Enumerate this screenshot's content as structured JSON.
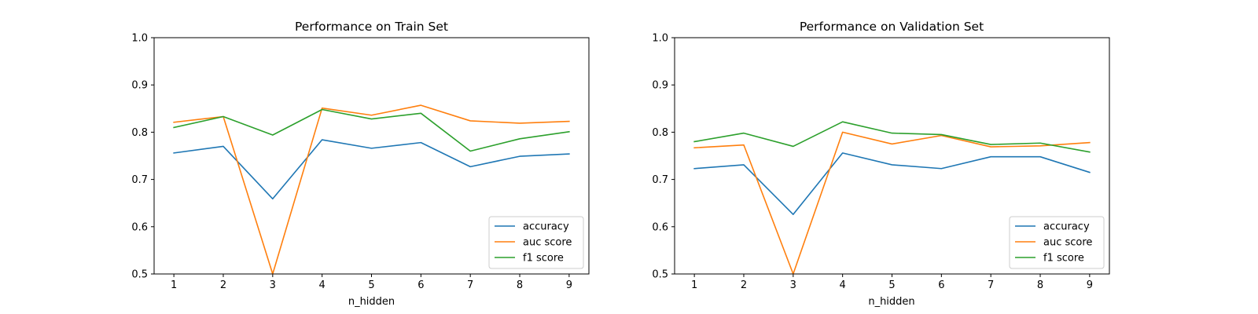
{
  "chart_data": [
    {
      "type": "line",
      "title": "Performance on Train Set",
      "xlabel": "n_hidden",
      "ylabel": "",
      "x": [
        1,
        2,
        3,
        4,
        5,
        6,
        7,
        8,
        9
      ],
      "xlim": [
        0.6,
        9.4
      ],
      "ylim": [
        0.5,
        1.0
      ],
      "yticks": [
        "0.5",
        "0.6",
        "0.7",
        "0.8",
        "0.9",
        "1.0"
      ],
      "xticks": [
        "1",
        "2",
        "3",
        "4",
        "5",
        "6",
        "7",
        "8",
        "9"
      ],
      "grid": false,
      "legend_position": "lower right",
      "series": [
        {
          "name": "accuracy",
          "color": "#1f77b4",
          "values": [
            0.756,
            0.77,
            0.659,
            0.784,
            0.766,
            0.778,
            0.727,
            0.749,
            0.754
          ]
        },
        {
          "name": "auc score",
          "color": "#ff7f0e",
          "values": [
            0.821,
            0.833,
            0.5,
            0.851,
            0.836,
            0.857,
            0.824,
            0.819,
            0.823
          ]
        },
        {
          "name": "f1 score",
          "color": "#2ca02c",
          "values": [
            0.81,
            0.833,
            0.794,
            0.848,
            0.828,
            0.84,
            0.76,
            0.786,
            0.801
          ]
        }
      ]
    },
    {
      "type": "line",
      "title": "Performance on Validation Set",
      "xlabel": "n_hidden",
      "ylabel": "",
      "x": [
        1,
        2,
        3,
        4,
        5,
        6,
        7,
        8,
        9
      ],
      "xlim": [
        0.6,
        9.4
      ],
      "ylim": [
        0.5,
        1.0
      ],
      "yticks": [
        "0.5",
        "0.6",
        "0.7",
        "0.8",
        "0.9",
        "1.0"
      ],
      "xticks": [
        "1",
        "2",
        "3",
        "4",
        "5",
        "6",
        "7",
        "8",
        "9"
      ],
      "grid": false,
      "legend_position": "lower right",
      "series": [
        {
          "name": "accuracy",
          "color": "#1f77b4",
          "values": [
            0.723,
            0.731,
            0.626,
            0.756,
            0.731,
            0.723,
            0.748,
            0.748,
            0.715
          ]
        },
        {
          "name": "auc score",
          "color": "#ff7f0e",
          "values": [
            0.767,
            0.773,
            0.5,
            0.8,
            0.775,
            0.793,
            0.769,
            0.771,
            0.778
          ]
        },
        {
          "name": "f1 score",
          "color": "#2ca02c",
          "values": [
            0.78,
            0.798,
            0.77,
            0.822,
            0.798,
            0.795,
            0.774,
            0.777,
            0.758
          ]
        }
      ]
    }
  ]
}
